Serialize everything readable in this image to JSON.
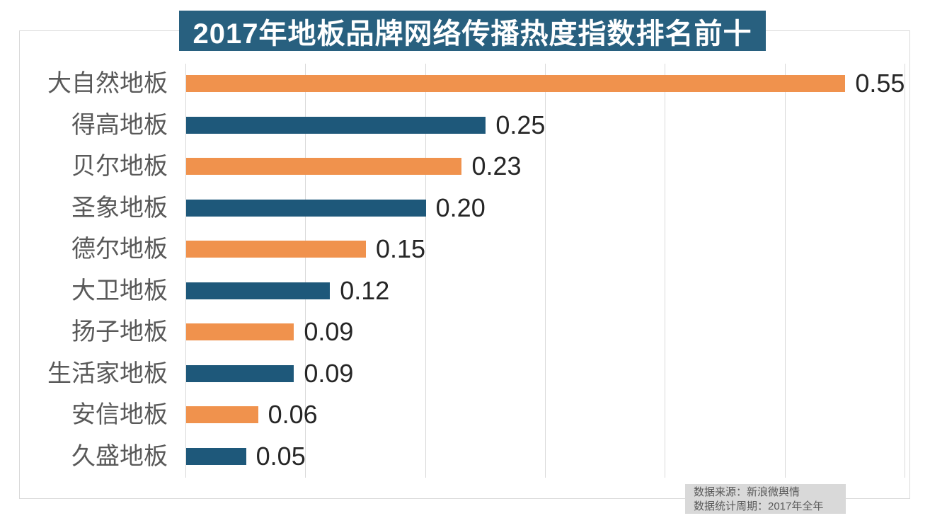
{
  "title": "2017年地板品牌网络传播热度指数排名前十",
  "source_note": {
    "line1": "数据来源：新浪微舆情",
    "line2": "数据统计周期：2017年全年"
  },
  "colors": {
    "title_bg": "#28607F",
    "bar_orange": "#F0924D",
    "bar_blue": "#1E587A",
    "grid": "#D9D9D9",
    "frame": "#D9D9D9",
    "category_label": "#595959",
    "value_label": "#262626",
    "source_bg": "#D9D9D9",
    "source_text": "#595959"
  },
  "chart_data": {
    "type": "bar",
    "orientation": "horizontal",
    "title": "2017年地板品牌网络传播热度指数排名前十",
    "categories": [
      "大自然地板",
      "得高地板",
      "贝尔地板",
      "圣象地板",
      "德尔地板",
      "大卫地板",
      "扬子地板",
      "生活家地板",
      "安信地板",
      "久盛地板"
    ],
    "values": [
      0.55,
      0.25,
      0.23,
      0.2,
      0.15,
      0.12,
      0.09,
      0.09,
      0.06,
      0.05
    ],
    "value_labels": [
      "0.55",
      "0.25",
      "0.23",
      "0.20",
      "0.15",
      "0.12",
      "0.09",
      "0.09",
      "0.06",
      "0.05"
    ],
    "xlim": [
      0,
      0.6
    ],
    "x_tick_interval": 0.1,
    "grid": true,
    "legend": false,
    "value_labels_position": "end-of-bar",
    "bar_color_pattern": [
      "#F0924D",
      "#1E587A"
    ]
  }
}
